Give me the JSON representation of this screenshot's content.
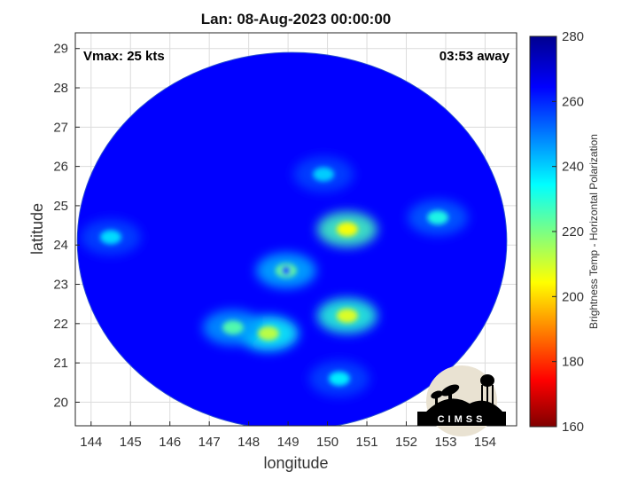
{
  "chart_data": {
    "type": "heatmap",
    "title": "Lan: 08-Aug-2023 00:00:00",
    "xlabel": "longitude",
    "ylabel": "latitude",
    "xlim": [
      143.6,
      154.8
    ],
    "ylim": [
      19.4,
      29.4
    ],
    "xticks": [
      144,
      145,
      146,
      147,
      148,
      149,
      150,
      151,
      152,
      153,
      154
    ],
    "yticks": [
      20,
      21,
      22,
      23,
      24,
      25,
      26,
      27,
      28,
      29
    ],
    "grid": true,
    "annotations": {
      "vmax": "Vmax: 25 kts",
      "time_away": "03:53 away"
    },
    "colorbar": {
      "label": "Brightness Temp - Horizontal Polarization",
      "range": [
        160,
        280
      ],
      "ticks": [
        160,
        180,
        200,
        220,
        240,
        260,
        280
      ],
      "colormap": "jet"
    },
    "swath": {
      "center": [
        149.1,
        24.1
      ],
      "radius_lon": 5.45,
      "radius_lat": 4.8,
      "background_value": 265
    },
    "features": [
      {
        "name": "eye",
        "lon": 148.95,
        "lat": 23.35,
        "value": 222
      },
      {
        "name": "northeast band core",
        "lon": 150.5,
        "lat": 24.4,
        "value": 205
      },
      {
        "name": "southeast band core",
        "lon": 150.5,
        "lat": 22.2,
        "value": 208
      },
      {
        "name": "southwest band core",
        "lon": 148.5,
        "lat": 21.75,
        "value": 212
      },
      {
        "name": "southwest band",
        "lon": 147.6,
        "lat": 21.9,
        "value": 225
      },
      {
        "name": "eastern band",
        "lon": 152.8,
        "lat": 24.7,
        "value": 232
      },
      {
        "name": "northern band",
        "lon": 149.9,
        "lat": 25.8,
        "value": 240
      },
      {
        "name": "western isolated cell",
        "lon": 144.5,
        "lat": 24.2,
        "value": 238
      },
      {
        "name": "southern band",
        "lon": 150.3,
        "lat": 20.6,
        "value": 236
      }
    ],
    "logo": "CIMSS"
  }
}
